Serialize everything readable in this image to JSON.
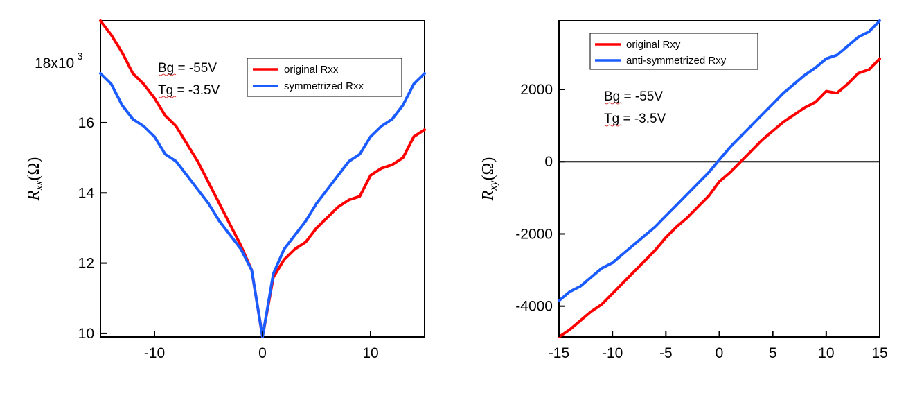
{
  "chart_data": [
    {
      "type": "line",
      "title": "",
      "xlabel": "",
      "ylabel": {
        "base": "R",
        "sub": "xx",
        "unit": "(Ω)"
      },
      "xlim": [
        -15,
        15
      ],
      "ylim": [
        9.9,
        18.9
      ],
      "y_multiplier_label": "18x10",
      "y_multiplier_exp": "3",
      "xticks": [
        -10,
        0,
        10
      ],
      "xtick_labels": [
        "-10",
        "0",
        "10"
      ],
      "yticks": [
        10,
        12,
        14,
        16
      ],
      "ytick_labels": [
        "10",
        "12",
        "14",
        "16"
      ],
      "grid": false,
      "legend_position": "top-right",
      "annotations": [
        "Bg = -55V",
        "Tg = -3.5V"
      ],
      "series": [
        {
          "name": "original Rxx",
          "color": "#ff0000",
          "x": [
            -15,
            -14,
            -13,
            -12,
            -11,
            -10,
            -9,
            -8,
            -7,
            -6,
            -5,
            -4,
            -3,
            -2,
            -1,
            0,
            1,
            2,
            3,
            4,
            5,
            6,
            7,
            8,
            9,
            10,
            11,
            12,
            13,
            14,
            15
          ],
          "y": [
            18.9,
            18.5,
            18.0,
            17.4,
            17.1,
            16.7,
            16.2,
            15.9,
            15.4,
            14.9,
            14.3,
            13.7,
            13.1,
            12.5,
            11.8,
            9.9,
            11.6,
            12.1,
            12.4,
            12.6,
            13.0,
            13.3,
            13.6,
            13.8,
            13.9,
            14.5,
            14.7,
            14.8,
            15.0,
            15.6,
            15.8
          ]
        },
        {
          "name": "symmetrized Rxx",
          "color": "#1a5cff",
          "x": [
            -15,
            -14,
            -13,
            -12,
            -11,
            -10,
            -9,
            -8,
            -7,
            -6,
            -5,
            -4,
            -3,
            -2,
            -1,
            0,
            1,
            2,
            3,
            4,
            5,
            6,
            7,
            8,
            9,
            10,
            11,
            12,
            13,
            14,
            15
          ],
          "y": [
            17.4,
            17.1,
            16.5,
            16.1,
            15.9,
            15.6,
            15.1,
            14.9,
            14.5,
            14.1,
            13.7,
            13.2,
            12.8,
            12.4,
            11.8,
            9.9,
            11.7,
            12.4,
            12.8,
            13.2,
            13.7,
            14.1,
            14.5,
            14.9,
            15.1,
            15.6,
            15.9,
            16.1,
            16.5,
            17.1,
            17.4
          ]
        }
      ]
    },
    {
      "type": "line",
      "title": "",
      "xlabel": "",
      "ylabel": {
        "base": "R",
        "sub": "xy",
        "unit": "(Ω)"
      },
      "xlim": [
        -15,
        15
      ],
      "ylim": [
        -4850,
        3900
      ],
      "xticks": [
        -15,
        -10,
        -5,
        0,
        5,
        10,
        15
      ],
      "xtick_labels": [
        "-15",
        "-10",
        "-5",
        "0",
        "5",
        "10",
        "15"
      ],
      "yticks": [
        -4000,
        -2000,
        0,
        2000
      ],
      "ytick_labels": [
        "-4000",
        "-2000",
        "0",
        "2000"
      ],
      "zero_line": true,
      "grid": false,
      "legend_position": "top-left",
      "annotations": [
        "Bg = -55V",
        "Tg = -3.5V"
      ],
      "series": [
        {
          "name": "original Rxy",
          "color": "#ff0000",
          "x": [
            -15,
            -14,
            -13,
            -12,
            -11,
            -10,
            -9,
            -8,
            -7,
            -6,
            -5,
            -4,
            -3,
            -2,
            -1,
            0,
            1,
            2,
            3,
            4,
            5,
            6,
            7,
            8,
            9,
            10,
            11,
            12,
            13,
            14,
            15
          ],
          "y": [
            -4850,
            -4650,
            -4400,
            -4150,
            -3950,
            -3650,
            -3350,
            -3050,
            -2750,
            -2450,
            -2100,
            -1800,
            -1550,
            -1250,
            -950,
            -550,
            -300,
            0,
            300,
            600,
            850,
            1100,
            1300,
            1500,
            1650,
            1950,
            1900,
            2150,
            2450,
            2550,
            2850
          ]
        },
        {
          "name": "anti-symmetrized Rxy",
          "color": "#1a5cff",
          "x": [
            -15,
            -14,
            -13,
            -12,
            -11,
            -10,
            -9,
            -8,
            -7,
            -6,
            -5,
            -4,
            -3,
            -2,
            -1,
            0,
            1,
            2,
            3,
            4,
            5,
            6,
            7,
            8,
            9,
            10,
            11,
            12,
            13,
            14,
            15
          ],
          "y": [
            -3850,
            -3600,
            -3450,
            -3200,
            -2950,
            -2800,
            -2550,
            -2300,
            -2050,
            -1800,
            -1500,
            -1200,
            -900,
            -600,
            -300,
            50,
            400,
            700,
            1000,
            1300,
            1600,
            1900,
            2150,
            2400,
            2600,
            2850,
            2950,
            3200,
            3450,
            3600,
            3900
          ]
        }
      ]
    }
  ]
}
